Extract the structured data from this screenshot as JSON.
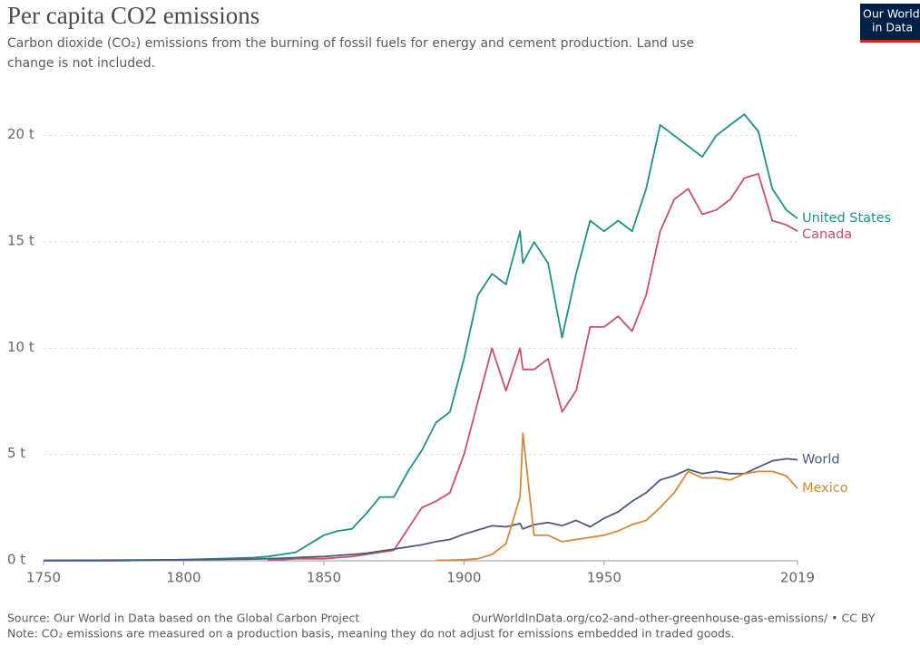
{
  "chart_data": {
    "type": "line",
    "title": "Per capita CO2 emissions",
    "subtitle": [
      "Carbon dioxide (CO₂) emissions from the burning of fossil fuels for energy and cement production. Land use",
      "change is not included."
    ],
    "logo": [
      "Our World",
      "in Data"
    ],
    "source": "Source: Our World in Data based on the Global Carbon Project",
    "url": "OurWorldInData.org/co2-and-other-greenhouse-gas-emissions/ • CC BY",
    "note": "Note: CO₂ emissions are measured on a production basis, meaning they do not adjust for emissions embedded in traded goods.",
    "x": [
      1750,
      1775,
      1800,
      1825,
      1830,
      1835,
      1840,
      1845,
      1850,
      1855,
      1860,
      1865,
      1870,
      1875,
      1880,
      1885,
      1890,
      1895,
      1900,
      1905,
      1910,
      1915,
      1920,
      1921,
      1925,
      1930,
      1935,
      1940,
      1945,
      1950,
      1955,
      1960,
      1965,
      1970,
      1975,
      1980,
      1985,
      1990,
      1995,
      2000,
      2005,
      2010,
      2015,
      2019
    ],
    "series": [
      {
        "name": "United States",
        "color": "#1f8f8a",
        "values": [
          0,
          0,
          0.05,
          0.15,
          0.2,
          0.3,
          0.4,
          0.8,
          1.2,
          1.4,
          1.5,
          2.2,
          3.0,
          3.0,
          4.2,
          5.2,
          6.5,
          7.0,
          9.5,
          12.5,
          13.5,
          13.0,
          15.5,
          14.0,
          15.0,
          14.0,
          10.5,
          13.5,
          16.0,
          15.5,
          16.0,
          15.5,
          17.5,
          20.5,
          20.0,
          19.5,
          19.0,
          20.0,
          20.5,
          21.0,
          20.2,
          17.5,
          16.5,
          16.1
        ]
      },
      {
        "name": "Canada",
        "color": "#c8506a",
        "values": [
          null,
          null,
          null,
          null,
          0.05,
          0.05,
          0.1,
          0.1,
          0.1,
          0.15,
          0.2,
          0.3,
          0.4,
          0.5,
          1.5,
          2.5,
          2.8,
          3.2,
          5.0,
          7.5,
          10.0,
          8.0,
          10.0,
          9.0,
          9.0,
          9.5,
          7.0,
          8.0,
          11.0,
          11.0,
          11.5,
          10.8,
          12.5,
          15.5,
          17.0,
          17.5,
          16.3,
          16.5,
          17.0,
          18.0,
          18.2,
          16.0,
          15.8,
          15.5
        ]
      },
      {
        "name": "World",
        "color": "#4c5a7a",
        "values": [
          0.02,
          0.03,
          0.05,
          0.08,
          0.1,
          0.12,
          0.15,
          0.18,
          0.2,
          0.25,
          0.3,
          0.35,
          0.45,
          0.55,
          0.65,
          0.75,
          0.9,
          1.0,
          1.25,
          1.45,
          1.65,
          1.6,
          1.75,
          1.5,
          1.7,
          1.8,
          1.65,
          1.9,
          1.6,
          2.0,
          2.3,
          2.8,
          3.2,
          3.8,
          4.0,
          4.3,
          4.1,
          4.2,
          4.1,
          4.1,
          4.4,
          4.7,
          4.8,
          4.75
        ]
      },
      {
        "name": "Mexico",
        "color": "#d08a3a",
        "values": [
          null,
          null,
          null,
          null,
          null,
          null,
          null,
          null,
          null,
          null,
          null,
          null,
          null,
          null,
          null,
          null,
          0.02,
          0.03,
          0.05,
          0.1,
          0.3,
          0.8,
          3.0,
          6.0,
          1.2,
          1.2,
          0.9,
          1.0,
          1.1,
          1.2,
          1.4,
          1.7,
          1.9,
          2.5,
          3.2,
          4.2,
          3.9,
          3.9,
          3.8,
          4.1,
          4.2,
          4.2,
          4.0,
          3.4
        ]
      }
    ],
    "xlim": [
      1750,
      2019
    ],
    "ylim": [
      0,
      22.5
    ],
    "xticks": [
      1750,
      1800,
      1850,
      1900,
      1950,
      2019
    ],
    "yticks": [
      {
        "value": 0,
        "label": "0 t"
      },
      {
        "value": 5,
        "label": "5 t"
      },
      {
        "value": 10,
        "label": "10 t"
      },
      {
        "value": 15,
        "label": "15 t"
      },
      {
        "value": 20,
        "label": "20 t"
      }
    ],
    "grid": true
  }
}
